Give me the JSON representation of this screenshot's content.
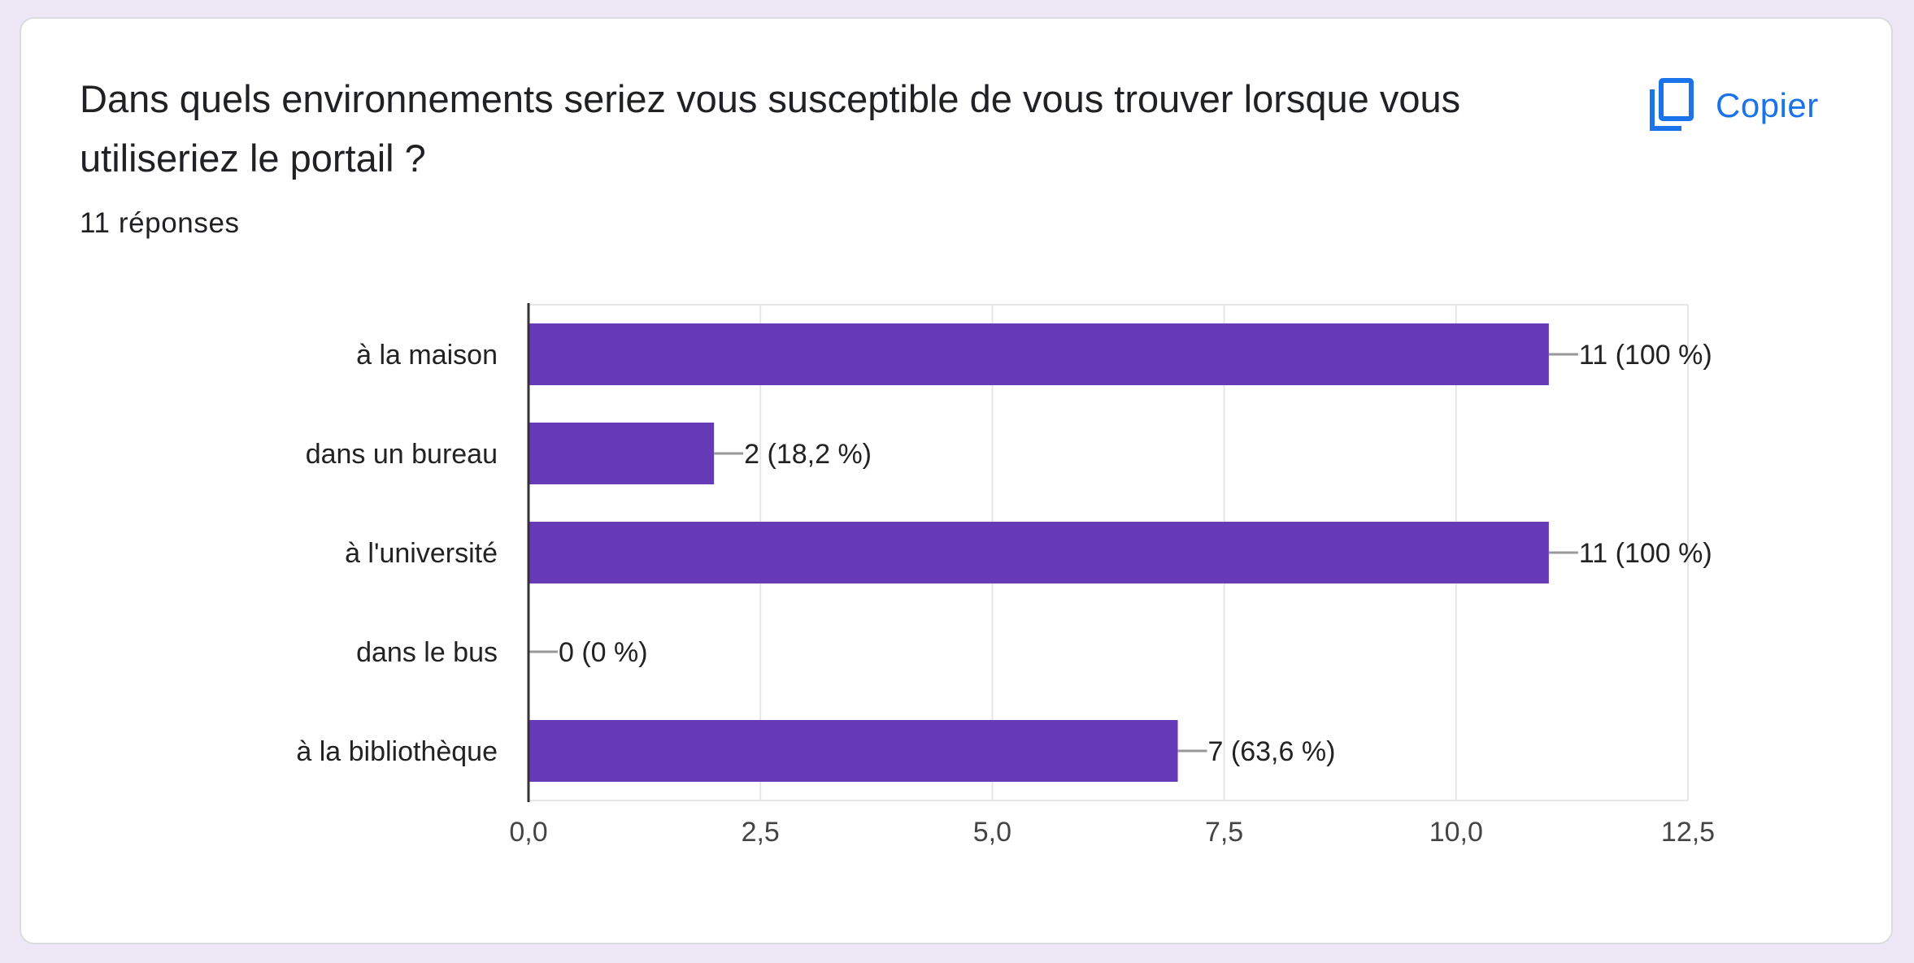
{
  "question": {
    "title": "Dans quels environnements seriez vous susceptible de vous trouver lorsque vous utiliseriez le portail ?",
    "response_count": "11 réponses"
  },
  "toolbar": {
    "copy_label": "Copier",
    "copy_icon": "copy-icon"
  },
  "colors": {
    "bar": "#673ab7",
    "accent": "#1a73e8",
    "background": "#ede7f6"
  },
  "chart_data": {
    "type": "bar",
    "orientation": "horizontal",
    "categories": [
      "à la maison",
      "dans un bureau",
      "à l'université",
      "dans le bus",
      "à la bibliothèque"
    ],
    "values": [
      11,
      2,
      11,
      0,
      7
    ],
    "data_labels": [
      "11 (100 %)",
      "2 (18,2 %)",
      "11 (100 %)",
      "0 (0 %)",
      "7 (63,6 %)"
    ],
    "xlim": [
      0,
      12.5
    ],
    "xticks": [
      0,
      2.5,
      5,
      7.5,
      10,
      12.5
    ],
    "xtick_labels": [
      "0,0",
      "2,5",
      "5,0",
      "7,5",
      "10,0",
      "12,5"
    ],
    "grid": true,
    "legend": "none"
  }
}
